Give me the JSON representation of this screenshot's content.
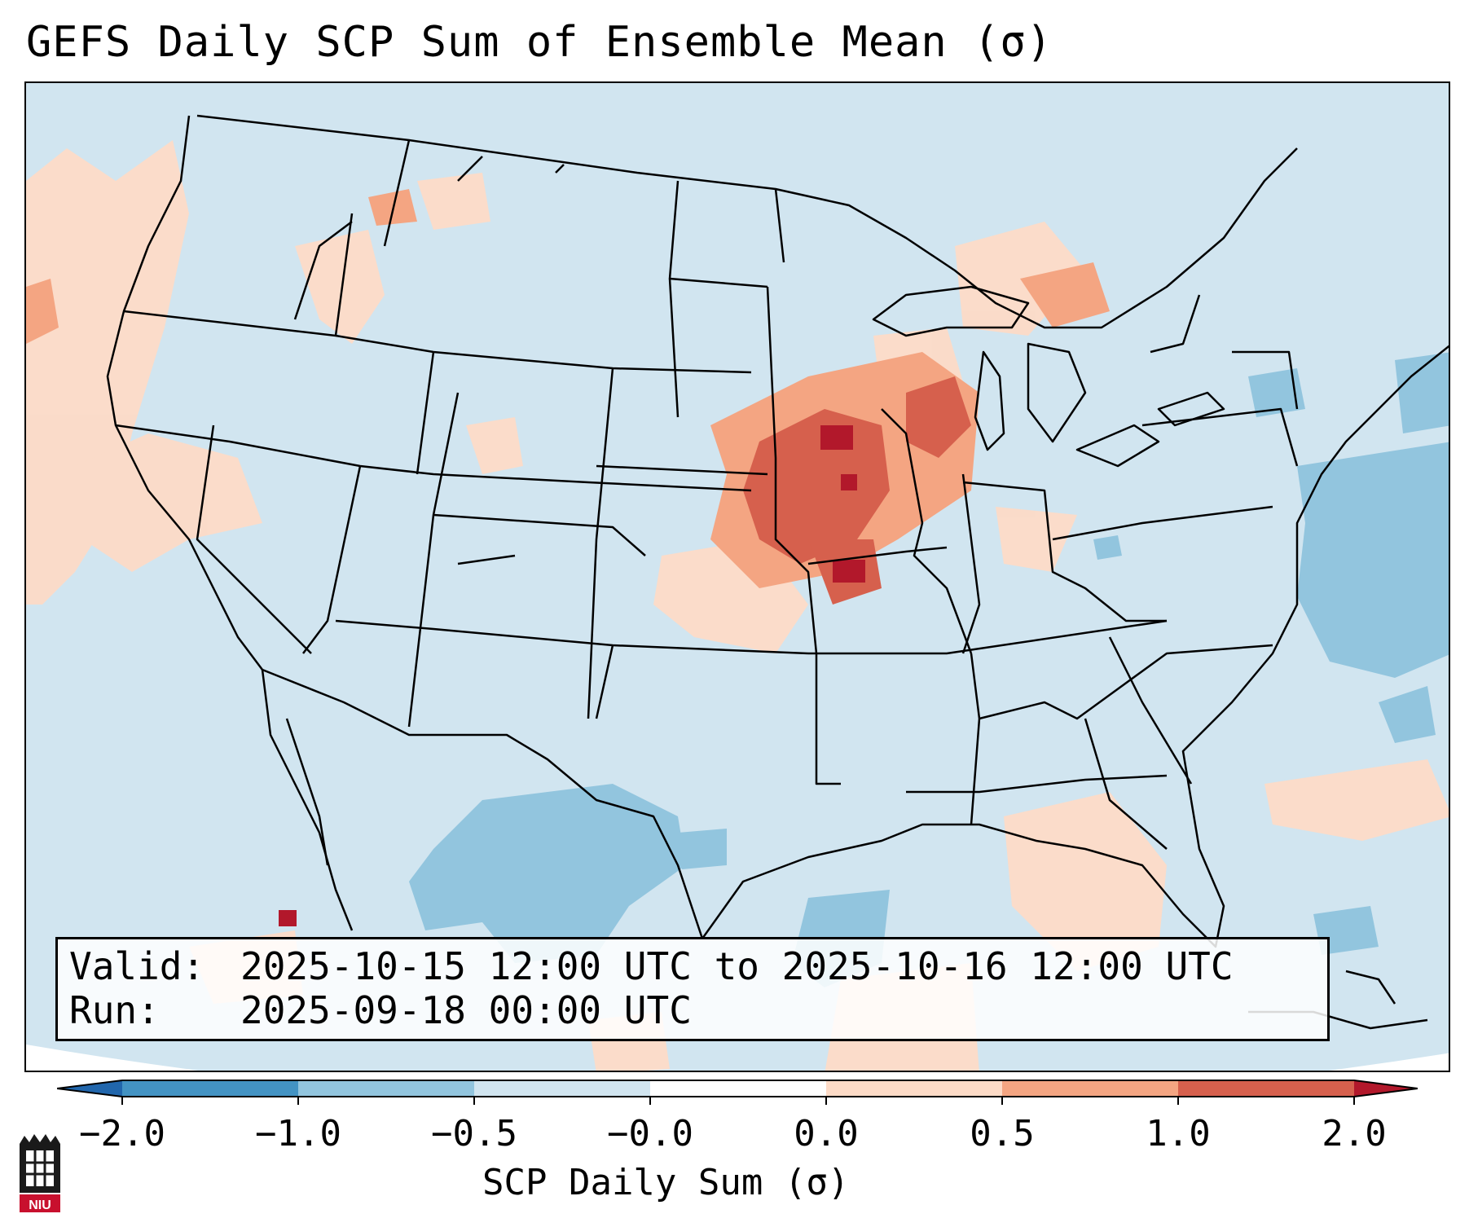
{
  "title": "GEFS Daily SCP Sum of Ensemble Mean (σ)",
  "info": {
    "valid_key": "Valid:",
    "valid_value": "2025-10-15 12:00 UTC to 2025-10-16 12:00 UTC",
    "run_key": "Run:",
    "run_value": "2025-09-18 00:00 UTC"
  },
  "colorbar": {
    "label": "SCP Daily Sum (σ)",
    "ticks": [
      "−2.0",
      "−1.0",
      "−0.5",
      "−0.0",
      "0.0",
      "0.5",
      "1.0",
      "2.0"
    ],
    "colors": {
      "lt_-2": "#2166ac",
      "-2_-1": "#4393c3",
      "-1_-0.5": "#92c5de",
      "-0.5_0": "#d1e5f0",
      "0_0.5": "#fddbc7",
      "0.5_1": "#f4a582",
      "1_2": "#d6604d",
      "gt_2": "#b2182b"
    }
  },
  "map": {
    "region": "Continental United States",
    "field": "SCP daily sum anomaly",
    "background_color": "#d1e5f0",
    "notable_features": [
      "strong positive anomaly over Iowa / Missouri / Illinois",
      "weak positive anomaly over Pacific Northwest coast and Great Lakes",
      "negative anomaly over south Texas / Gulf and western Atlantic"
    ]
  },
  "logo": {
    "text": "NIU"
  }
}
